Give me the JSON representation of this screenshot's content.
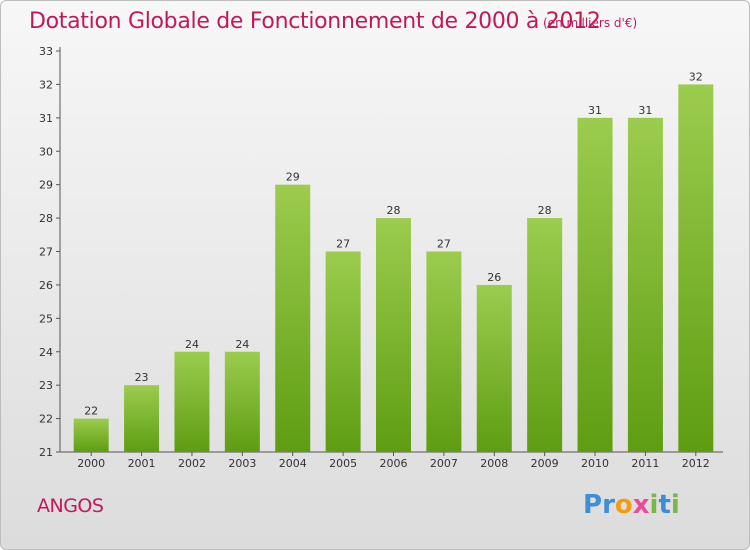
{
  "chart_data": {
    "type": "bar",
    "title": "Dotation Globale de Fonctionnement de 2000 à 2012",
    "subtitle": "(en milliers d'€)",
    "categories": [
      "2000",
      "2001",
      "2002",
      "2003",
      "2004",
      "2005",
      "2006",
      "2007",
      "2008",
      "2009",
      "2010",
      "2011",
      "2012"
    ],
    "values": [
      22,
      23,
      24,
      24,
      29,
      27,
      28,
      27,
      26,
      28,
      31,
      31,
      32
    ],
    "ylim": [
      21,
      33
    ],
    "yticks": [
      21,
      22,
      23,
      24,
      25,
      26,
      27,
      28,
      29,
      30,
      31,
      32,
      33
    ],
    "grid": false,
    "colors": {
      "bar_light": "#9ccc4e",
      "bar_dark": "#5e9d12",
      "title": "#c2185b"
    }
  },
  "footer": {
    "commune": "ANGOS"
  },
  "logo": {
    "text": "Proxiti",
    "letters": [
      {
        "ch": "P",
        "color": "#3a8fd6"
      },
      {
        "ch": "r",
        "color": "#3a8fd6"
      },
      {
        "ch": "o",
        "color": "#f39c12"
      },
      {
        "ch": "x",
        "color": "#e94b9a"
      },
      {
        "ch": "i",
        "color": "#7ab648"
      },
      {
        "ch": "t",
        "color": "#3a8fd6"
      },
      {
        "ch": "i",
        "color": "#7ab648"
      }
    ]
  }
}
